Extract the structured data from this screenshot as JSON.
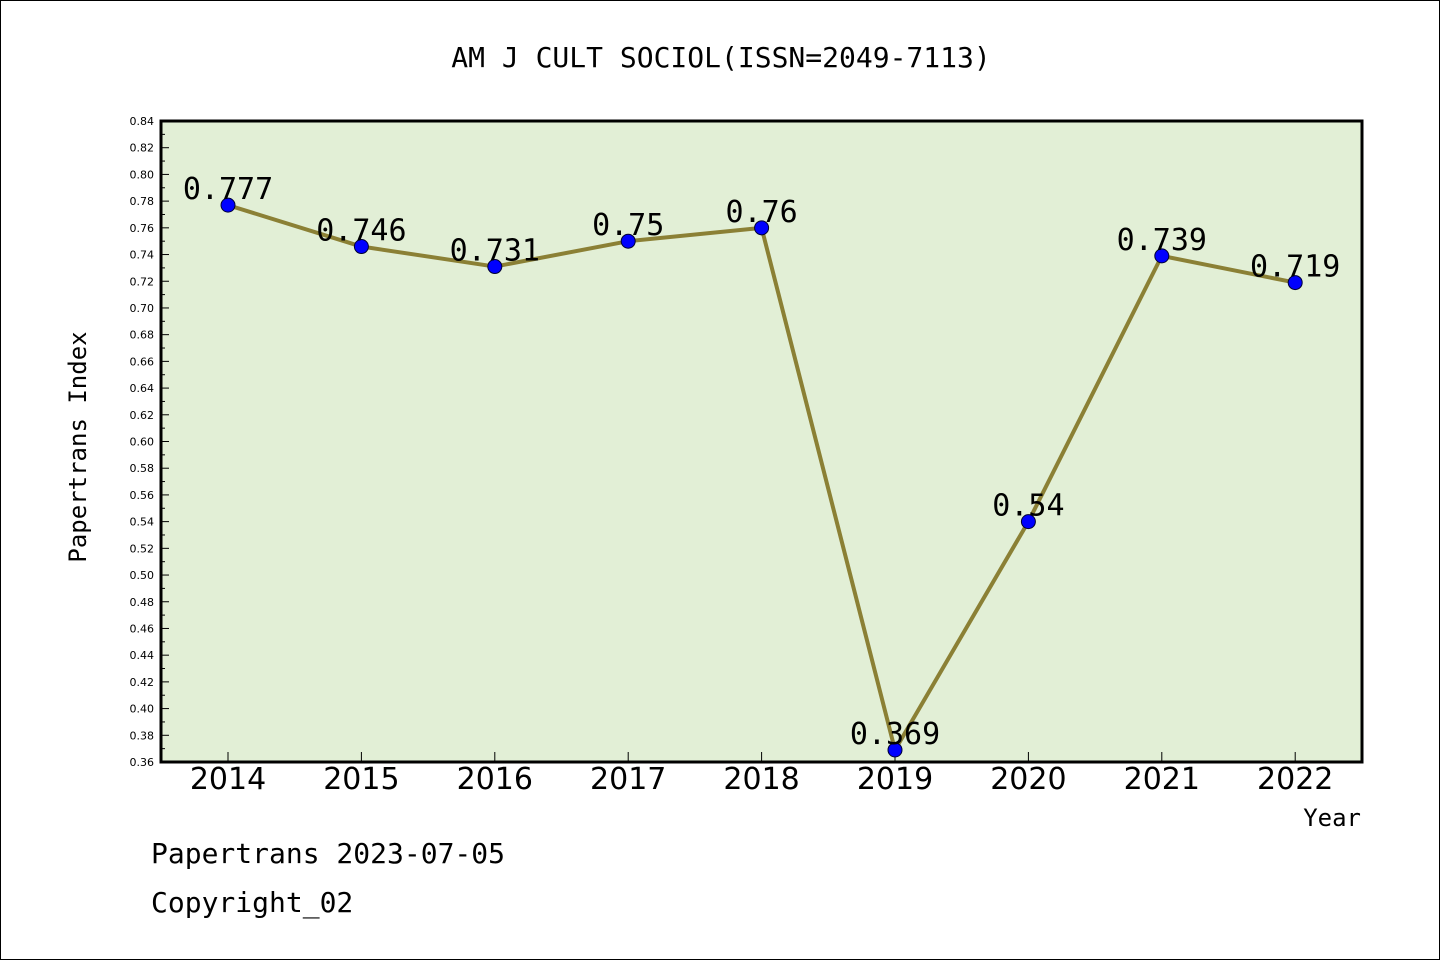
{
  "chart_data": {
    "type": "line",
    "title": "AM J CULT SOCIOL(ISSN=2049-7113)",
    "xlabel": "Year",
    "ylabel": "Papertrans Index",
    "categories": [
      "2014",
      "2015",
      "2016",
      "2017",
      "2018",
      "2019",
      "2020",
      "2021",
      "2022"
    ],
    "series": [
      {
        "values": [
          0.777,
          0.746,
          0.731,
          0.75,
          0.76,
          0.369,
          0.54,
          0.739,
          0.719
        ],
        "labels": [
          "0.777",
          "0.746",
          "0.731",
          "0.75",
          "0.76",
          "0.369",
          "0.54",
          "0.739",
          "0.719"
        ]
      }
    ],
    "ylim": [
      0.36,
      0.84
    ],
    "yticks": [
      "0.36",
      "0.38",
      "0.40",
      "0.42",
      "0.44",
      "0.46",
      "0.48",
      "0.50",
      "0.52",
      "0.54",
      "0.56",
      "0.58",
      "0.60",
      "0.62",
      "0.64",
      "0.66",
      "0.68",
      "0.70",
      "0.72",
      "0.74",
      "0.76",
      "0.78",
      "0.80",
      "0.82",
      "0.84"
    ],
    "grid": false,
    "colors": {
      "plot_background": "#e2efd6",
      "line": "#8b8035",
      "marker": "#0000ff"
    }
  },
  "footer": {
    "line1": "Papertrans 2023-07-05",
    "line2": "Copyright_02"
  }
}
